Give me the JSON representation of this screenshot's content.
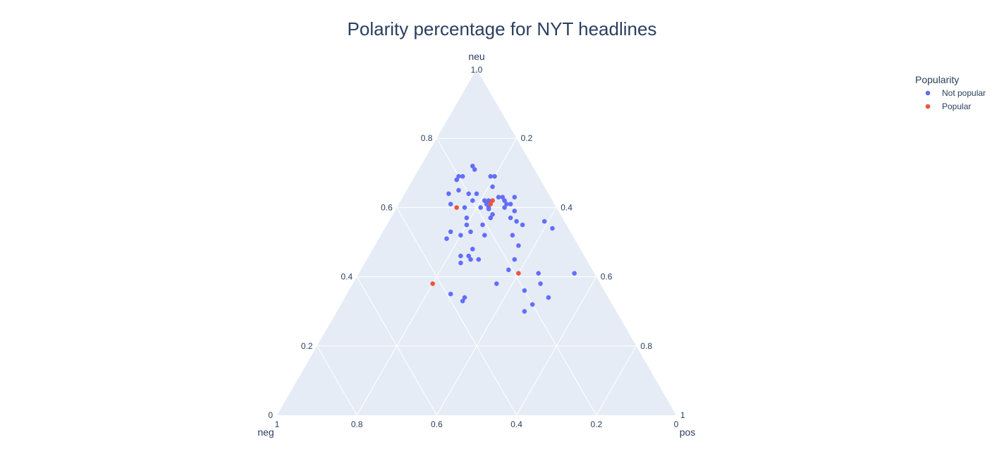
{
  "chart_data": {
    "type": "scatter",
    "subtype": "ternary",
    "title": "Polarity percentage for NYT headlines",
    "axes": {
      "a": {
        "label": "neu",
        "ticks": [
          "0",
          "0.2",
          "0.4",
          "0.6",
          "0.8",
          "1.0"
        ]
      },
      "b": {
        "label": "neg",
        "ticks": [
          "1",
          "0.8",
          "0.6",
          "0.4",
          "0.2",
          "0"
        ]
      },
      "c": {
        "label": "pos",
        "ticks": [
          "1",
          "0.8",
          "0.6",
          "0.4",
          "0.2",
          "0"
        ]
      }
    },
    "background_color": "#e5ecf6",
    "grid": true,
    "legend": {
      "title": "Popularity",
      "position": "top-right"
    },
    "series": [
      {
        "name": "Not popular",
        "color": "#636efa",
        "points": [
          [
            0.72,
            0.15,
            0.13
          ],
          [
            0.71,
            0.15,
            0.14
          ],
          [
            0.69,
            0.2,
            0.11
          ],
          [
            0.69,
            0.19,
            0.12
          ],
          [
            0.69,
            0.12,
            0.19
          ],
          [
            0.69,
            0.11,
            0.2
          ],
          [
            0.68,
            0.21,
            0.11
          ],
          [
            0.66,
            0.13,
            0.21
          ],
          [
            0.65,
            0.22,
            0.13
          ],
          [
            0.64,
            0.25,
            0.11
          ],
          [
            0.64,
            0.2,
            0.16
          ],
          [
            0.64,
            0.18,
            0.18
          ],
          [
            0.63,
            0.13,
            0.24
          ],
          [
            0.63,
            0.12,
            0.25
          ],
          [
            0.63,
            0.09,
            0.28
          ],
          [
            0.62,
            0.2,
            0.18
          ],
          [
            0.62,
            0.17,
            0.21
          ],
          [
            0.62,
            0.16,
            0.22
          ],
          [
            0.62,
            0.12,
            0.26
          ],
          [
            0.61,
            0.26,
            0.13
          ],
          [
            0.61,
            0.17,
            0.22
          ],
          [
            0.61,
            0.12,
            0.27
          ],
          [
            0.61,
            0.11,
            0.28
          ],
          [
            0.6,
            0.23,
            0.17
          ],
          [
            0.6,
            0.19,
            0.21
          ],
          [
            0.6,
            0.17,
            0.23
          ],
          [
            0.6,
            0.13,
            0.27
          ],
          [
            0.59,
            0.17,
            0.23
          ],
          [
            0.59,
            0.11,
            0.3
          ],
          [
            0.58,
            0.17,
            0.25
          ],
          [
            0.57,
            0.24,
            0.19
          ],
          [
            0.57,
            0.18,
            0.25
          ],
          [
            0.57,
            0.13,
            0.3
          ],
          [
            0.56,
            0.12,
            0.32
          ],
          [
            0.56,
            0.05,
            0.39
          ],
          [
            0.55,
            0.21,
            0.24
          ],
          [
            0.55,
            0.25,
            0.2
          ],
          [
            0.55,
            0.11,
            0.34
          ],
          [
            0.54,
            0.04,
            0.42
          ],
          [
            0.53,
            0.25,
            0.22
          ],
          [
            0.53,
            0.3,
            0.17
          ],
          [
            0.52,
            0.22,
            0.26
          ],
          [
            0.52,
            0.28,
            0.2
          ],
          [
            0.52,
            0.15,
            0.33
          ],
          [
            0.51,
            0.32,
            0.17
          ],
          [
            0.49,
            0.15,
            0.36
          ],
          [
            0.48,
            0.27,
            0.25
          ],
          [
            0.46,
            0.29,
            0.25
          ],
          [
            0.46,
            0.31,
            0.23
          ],
          [
            0.45,
            0.29,
            0.26
          ],
          [
            0.45,
            0.27,
            0.28
          ],
          [
            0.45,
            0.18,
            0.37
          ],
          [
            0.44,
            0.32,
            0.24
          ],
          [
            0.42,
            0.21,
            0.37
          ],
          [
            0.41,
            0.05,
            0.54
          ],
          [
            0.41,
            0.14,
            0.45
          ],
          [
            0.38,
            0.26,
            0.36
          ],
          [
            0.38,
            0.15,
            0.47
          ],
          [
            0.36,
            0.2,
            0.44
          ],
          [
            0.35,
            0.39,
            0.26
          ],
          [
            0.34,
            0.36,
            0.3
          ],
          [
            0.34,
            0.15,
            0.51
          ],
          [
            0.33,
            0.37,
            0.3
          ],
          [
            0.32,
            0.2,
            0.48
          ],
          [
            0.3,
            0.23,
            0.47
          ]
        ]
      },
      {
        "name": "Popular",
        "color": "#ef553b",
        "points": [
          [
            0.62,
            0.15,
            0.23
          ],
          [
            0.61,
            0.16,
            0.23
          ],
          [
            0.6,
            0.25,
            0.15
          ],
          [
            0.41,
            0.19,
            0.4
          ],
          [
            0.38,
            0.42,
            0.2
          ]
        ]
      }
    ]
  }
}
